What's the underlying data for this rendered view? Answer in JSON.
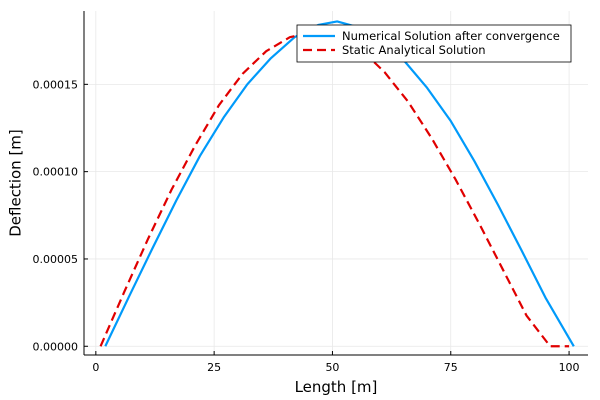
{
  "chart_data": {
    "type": "line",
    "xlabel": "Length [m]",
    "ylabel": "Deflection [m]",
    "xlim": [
      -2.5,
      104
    ],
    "ylim": [
      -5e-06,
      0.000192
    ],
    "xticks": [
      0,
      25,
      50,
      75,
      100
    ],
    "xtick_labels": [
      "0",
      "25",
      "50",
      "75",
      "100"
    ],
    "yticks": [
      0.0,
      5e-05,
      0.0001,
      0.00015
    ],
    "ytick_labels": [
      "0.00000",
      "0.00005",
      "0.00010",
      "0.00015"
    ],
    "grid": true,
    "legend_position": "top-right",
    "series": [
      {
        "name": "Numerical Solution after convergence",
        "color": "#009AFA",
        "style": "solid",
        "x": [
          2,
          7,
          12,
          17,
          22,
          27,
          32,
          37,
          42,
          47,
          51,
          55,
          60,
          65,
          70,
          75,
          80,
          85,
          90,
          95,
          101
        ],
        "y": [
          0.0,
          2.84e-05,
          5.63e-05,
          8.35e-05,
          0.000109,
          0.000131,
          0.00015,
          0.000165,
          0.000177,
          0.000184,
          0.000186,
          0.000183,
          0.000176,
          0.000164,
          0.000148,
          0.000129,
          0.000106,
          8.09e-05,
          5.47e-05,
          2.79e-05,
          0.0
        ]
      },
      {
        "name": "Static Analytical Solution",
        "color": "#E00000",
        "style": "dashed",
        "x": [
          1,
          6,
          11,
          16,
          21,
          26,
          31,
          36,
          41,
          46,
          51,
          56,
          61,
          66,
          71,
          76,
          81,
          86,
          91,
          96,
          100
        ],
        "y": [
          0.0,
          3.11e-05,
          6.13e-05,
          8.97e-05,
          0.000115,
          0.000138,
          0.000156,
          0.000169,
          0.000177,
          0.00018,
          0.000177,
          0.00017,
          0.000157,
          0.00014,
          0.000119,
          9.56e-05,
          7.03e-05,
          4.4e-05,
          1.76e-05,
          0.0,
          0.0
        ]
      }
    ]
  }
}
